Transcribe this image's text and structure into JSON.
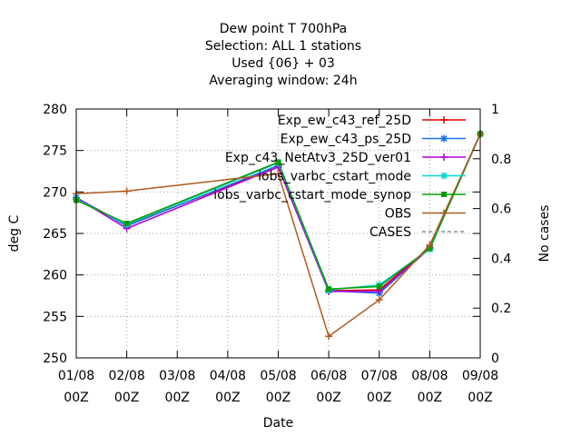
{
  "chart_data": {
    "type": "line",
    "title_lines": [
      "Dew point T 700hPa",
      "Selection: ALL      1 stations",
      "Used {06} + 03",
      "Averaging window: 24h"
    ],
    "xlabel": "Date",
    "ylabel": "deg C",
    "y2label": "No cases",
    "categories": [
      "01/08\n00Z",
      "02/08\n00Z",
      "03/08\n00Z",
      "04/08\n00Z",
      "05/08\n00Z",
      "06/08\n00Z",
      "07/08\n00Z",
      "08/08\n00Z",
      "09/08\n00Z"
    ],
    "x": [
      0,
      1,
      2,
      3,
      4,
      5,
      6,
      7,
      8
    ],
    "ylim": [
      250,
      280
    ],
    "yticks": [
      250,
      255,
      260,
      265,
      270,
      275,
      280
    ],
    "y2lim": [
      0,
      1
    ],
    "y2ticks": [
      0,
      0.2,
      0.4,
      0.6,
      0.8,
      1
    ],
    "grid": true,
    "legend_position": "top-right",
    "series": [
      {
        "name": "Exp_ew_c43_ref_25D",
        "color": "#dd0000",
        "marker": "plus",
        "x": [
          0,
          1,
          4,
          5,
          6,
          7,
          8
        ],
        "y": [
          269.3,
          266.0,
          273.0,
          258.1,
          258.2,
          263.3,
          277.0
        ]
      },
      {
        "name": "Exp_ew_c43_ps_25D",
        "color": "#1a75e8",
        "marker": "star",
        "x": [
          0,
          1,
          4,
          5,
          6,
          7,
          8
        ],
        "y": [
          269.3,
          265.9,
          273.2,
          258.1,
          257.8,
          263.2,
          277.0
        ]
      },
      {
        "name": "Exp_c43_NetAtv3_25D_ver01",
        "color": "#b000e0",
        "marker": "plus",
        "x": [
          0,
          1,
          4,
          5,
          6,
          7,
          8
        ],
        "y": [
          269.3,
          265.6,
          273.0,
          258.0,
          258.0,
          263.2,
          277.0
        ]
      },
      {
        "name": "iobs_varbc_cstart_mode",
        "color": "#00d8d8",
        "marker": "star",
        "x": [
          0,
          1,
          4,
          5,
          6,
          7,
          8
        ],
        "y": [
          269.1,
          266.1,
          273.5,
          258.2,
          258.8,
          263.1,
          277.0
        ]
      },
      {
        "name": "iobs_varbc_cstart_mode_synop",
        "color": "#00a000",
        "marker": "square",
        "x": [
          0,
          1,
          4,
          5,
          6,
          7,
          8
        ],
        "y": [
          269.0,
          266.2,
          273.6,
          258.3,
          258.6,
          263.2,
          277.0
        ]
      },
      {
        "name": "OBS",
        "color": "#b05a1e",
        "marker": "plus",
        "x": [
          0,
          1,
          4,
          5,
          6,
          7,
          8
        ],
        "y": [
          269.8,
          270.1,
          272.2,
          252.6,
          257.0,
          263.6,
          277.0
        ]
      },
      {
        "name": "CASES",
        "color": "#909090",
        "marker": "none",
        "dashed": true,
        "axis": "y2",
        "x": [],
        "y": []
      }
    ]
  }
}
